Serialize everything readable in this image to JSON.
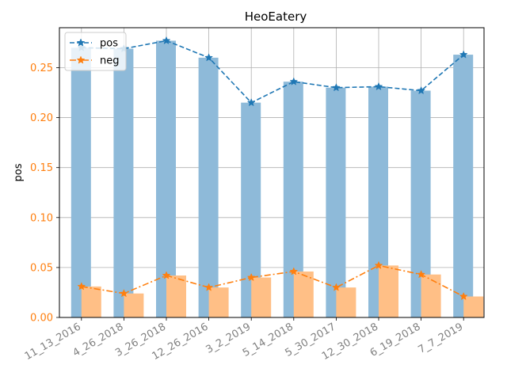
{
  "chart_data": {
    "type": "bar",
    "title": "HeoEatery",
    "ylabel": "pos",
    "xlabel": "",
    "ylim": [
      0,
      0.29
    ],
    "yticks": [
      "0.00",
      "0.05",
      "0.10",
      "0.15",
      "0.20",
      "0.25"
    ],
    "grid": true,
    "legend_position": "top-left",
    "categories": [
      "11_13_2016",
      "4_26_2018",
      "3_26_2018",
      "12_26_2016",
      "3_2_2019",
      "5_14_2018",
      "5_30_2017",
      "12_30_2018",
      "6_19_2018",
      "7_7_2019"
    ],
    "series": [
      {
        "name": "pos",
        "values": [
          0.27,
          0.269,
          0.277,
          0.26,
          0.215,
          0.236,
          0.23,
          0.231,
          0.227,
          0.263
        ],
        "bar_color": "#8ebad9",
        "line_color": "#1f77b4",
        "line_style": "dashed"
      },
      {
        "name": "neg",
        "values": [
          0.031,
          0.024,
          0.042,
          0.03,
          0.04,
          0.046,
          0.03,
          0.052,
          0.043,
          0.021
        ],
        "bar_color": "#ffbf86",
        "line_color": "#ff7f0e",
        "line_style": "dashdot"
      }
    ],
    "ytick_color": "#ff7f0e",
    "xtick_color": "#808080"
  }
}
